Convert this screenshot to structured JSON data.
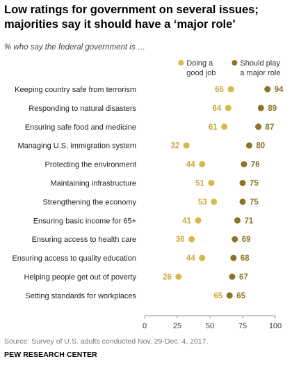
{
  "title": "Low ratings for government on several issues; majorities say it should have a ‘major role’",
  "subtitle": "% who say the federal government is …",
  "source": "Source: Survey of U.S. adults conducted Nov. 29-Dec. 4, 2017.",
  "brand": "PEW RESEARCH CENTER",
  "colors": {
    "good_job": "#d9b84a",
    "major_role": "#8d7328",
    "label_good": "#c9a93f",
    "label_major": "#8d7328"
  },
  "chart_data": {
    "type": "scatter",
    "categories": [
      "Keeping country safe from terrorism",
      "Responding to natural disasters",
      "Ensuring safe food and medicine",
      "Managing U.S. immigration system",
      "Protecting the environment",
      "Maintaining infrastructure",
      "Strengthening the economy",
      "Ensuring basic income for 65+",
      "Ensuring access to health care",
      "Ensuring access to quality education",
      "Helping people get out of poverty",
      "Setting standards for workplaces"
    ],
    "series": [
      {
        "name": "Doing a good job",
        "values": [
          66,
          64,
          61,
          32,
          44,
          51,
          53,
          41,
          36,
          44,
          26,
          65
        ]
      },
      {
        "name": "Should play a major role",
        "values": [
          94,
          89,
          87,
          80,
          76,
          75,
          75,
          71,
          69,
          68,
          67,
          65
        ]
      }
    ],
    "legend": [
      {
        "line1": "Doing a",
        "line2": "good job"
      },
      {
        "line1": "Should play",
        "line2": "a major role"
      }
    ],
    "xlim": [
      0,
      100
    ],
    "xticks": [
      "0",
      "25",
      "50",
      "75",
      "100"
    ],
    "grid": false,
    "legend_position": "top-right"
  }
}
